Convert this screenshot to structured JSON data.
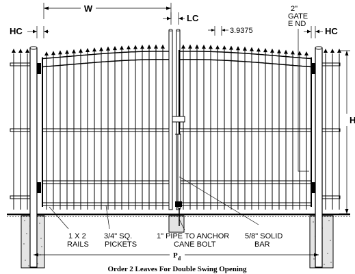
{
  "labels": {
    "w": "W",
    "lc": "LC",
    "hc_left": "HC",
    "hc_right": "HC",
    "spacing": "3.9375",
    "gate_end_line1": "2\"",
    "gate_end_line2": "GATE",
    "gate_end_line3": "E ND",
    "h": "H",
    "rails_line1": "1 X 2",
    "rails_line2": "RAILS",
    "pickets_line1": "3/4\" SQ.",
    "pickets_line2": "PICKETS",
    "pipe_line1": "1\" PIPE TO ANCHOR",
    "pipe_line2": "CANE BOLT",
    "bar_line1": "5/8\" SOLID",
    "bar_line2": "BAR",
    "pd_main": "P",
    "pd_sub": "d",
    "caption": "Order 2 Leaves For Double Swing Opening"
  },
  "colors": {
    "line": "#000000",
    "background": "#ffffff",
    "concrete": "#cfcfcf"
  }
}
